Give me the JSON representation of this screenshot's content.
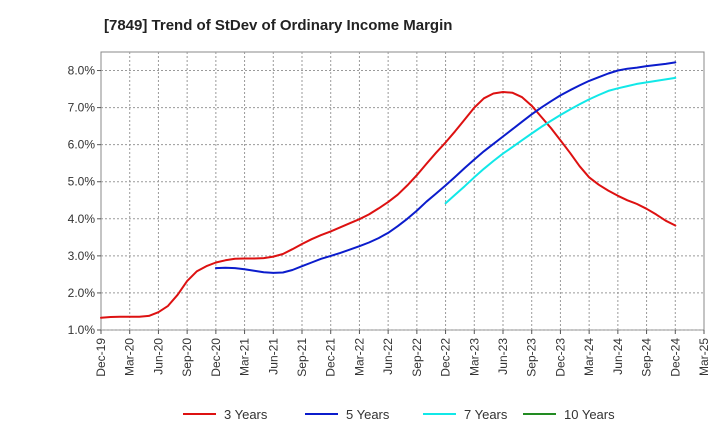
{
  "chart_data": {
    "type": "line",
    "title": "[7849]  Trend of StDev of Ordinary Income Margin",
    "xlabel": "",
    "ylabel": "",
    "x_ticks": [
      "Dec-19",
      "Mar-20",
      "Jun-20",
      "Sep-20",
      "Dec-20",
      "Mar-21",
      "Jun-21",
      "Sep-21",
      "Dec-21",
      "Mar-22",
      "Jun-22",
      "Sep-22",
      "Dec-22",
      "Mar-23",
      "Jun-23",
      "Sep-23",
      "Dec-23",
      "Mar-24",
      "Jun-24",
      "Sep-24",
      "Dec-24",
      "Mar-25"
    ],
    "y_ticks": [
      "1.0%",
      "2.0%",
      "3.0%",
      "4.0%",
      "5.0%",
      "6.0%",
      "7.0%",
      "8.0%"
    ],
    "ylim": [
      1.0,
      8.5
    ],
    "grid": true,
    "legend_position": "bottom",
    "series": [
      {
        "name": "3 Years",
        "color": "#dd1111",
        "x": [
          "Dec-19",
          "Jan-20",
          "Feb-20",
          "Mar-20",
          "Apr-20",
          "May-20",
          "Jun-20",
          "Jul-20",
          "Aug-20",
          "Sep-20",
          "Oct-20",
          "Nov-20",
          "Dec-20",
          "Jan-21",
          "Feb-21",
          "Mar-21",
          "Apr-21",
          "May-21",
          "Jun-21",
          "Jul-21",
          "Aug-21",
          "Sep-21",
          "Oct-21",
          "Nov-21",
          "Dec-21",
          "Jan-22",
          "Feb-22",
          "Mar-22",
          "Apr-22",
          "May-22",
          "Jun-22",
          "Jul-22",
          "Aug-22",
          "Sep-22",
          "Oct-22",
          "Nov-22",
          "Dec-22",
          "Jan-23",
          "Feb-23",
          "Mar-23",
          "Apr-23",
          "May-23",
          "Jun-23",
          "Jul-23",
          "Aug-23",
          "Sep-23",
          "Oct-23",
          "Nov-23",
          "Dec-23",
          "Jan-24",
          "Feb-24",
          "Mar-24",
          "Apr-24",
          "May-24",
          "Jun-24",
          "Jul-24",
          "Aug-24",
          "Sep-24",
          "Oct-24",
          "Nov-24",
          "Dec-24"
        ],
        "values": [
          1.33,
          1.35,
          1.36,
          1.36,
          1.36,
          1.38,
          1.48,
          1.65,
          1.95,
          2.32,
          2.58,
          2.72,
          2.82,
          2.88,
          2.92,
          2.93,
          2.93,
          2.94,
          2.98,
          3.05,
          3.18,
          3.32,
          3.45,
          3.56,
          3.66,
          3.77,
          3.88,
          3.99,
          4.12,
          4.28,
          4.45,
          4.65,
          4.9,
          5.18,
          5.48,
          5.78,
          6.06,
          6.36,
          6.68,
          7.0,
          7.25,
          7.38,
          7.42,
          7.4,
          7.28,
          7.05,
          6.75,
          6.45,
          6.12,
          5.78,
          5.42,
          5.12,
          4.92,
          4.76,
          4.62,
          4.5,
          4.4,
          4.27,
          4.12,
          3.95,
          3.82
        ]
      },
      {
        "name": "5 Years",
        "color": "#0b1ccc",
        "x": [
          "Dec-20",
          "Jan-21",
          "Feb-21",
          "Mar-21",
          "Apr-21",
          "May-21",
          "Jun-21",
          "Jul-21",
          "Aug-21",
          "Sep-21",
          "Oct-21",
          "Nov-21",
          "Dec-21",
          "Jan-22",
          "Feb-22",
          "Mar-22",
          "Apr-22",
          "May-22",
          "Jun-22",
          "Jul-22",
          "Aug-22",
          "Sep-22",
          "Oct-22",
          "Nov-22",
          "Dec-22",
          "Jan-23",
          "Feb-23",
          "Mar-23",
          "Apr-23",
          "May-23",
          "Jun-23",
          "Jul-23",
          "Aug-23",
          "Sep-23",
          "Oct-23",
          "Nov-23",
          "Dec-23",
          "Jan-24",
          "Feb-24",
          "Mar-24",
          "Apr-24",
          "May-24",
          "Jun-24",
          "Jul-24",
          "Aug-24",
          "Sep-24",
          "Oct-24",
          "Nov-24",
          "Dec-24"
        ],
        "values": [
          2.67,
          2.68,
          2.67,
          2.64,
          2.6,
          2.56,
          2.54,
          2.55,
          2.62,
          2.72,
          2.82,
          2.92,
          3.0,
          3.08,
          3.17,
          3.26,
          3.36,
          3.48,
          3.62,
          3.8,
          4.0,
          4.22,
          4.46,
          4.68,
          4.9,
          5.13,
          5.37,
          5.6,
          5.82,
          6.02,
          6.22,
          6.42,
          6.62,
          6.82,
          7.0,
          7.17,
          7.33,
          7.47,
          7.6,
          7.72,
          7.82,
          7.92,
          8.0,
          8.05,
          8.08,
          8.12,
          8.15,
          8.18,
          8.22
        ]
      },
      {
        "name": "7 Years",
        "color": "#11e8e8",
        "x": [
          "Dec-22",
          "Jan-23",
          "Feb-23",
          "Mar-23",
          "Apr-23",
          "May-23",
          "Jun-23",
          "Jul-23",
          "Aug-23",
          "Sep-23",
          "Oct-23",
          "Nov-23",
          "Dec-23",
          "Jan-24",
          "Feb-24",
          "Mar-24",
          "Apr-24",
          "May-24",
          "Jun-24",
          "Jul-24",
          "Aug-24",
          "Sep-24",
          "Oct-24",
          "Nov-24",
          "Dec-24"
        ],
        "values": [
          4.42,
          4.65,
          4.88,
          5.12,
          5.35,
          5.56,
          5.76,
          5.94,
          6.12,
          6.3,
          6.48,
          6.64,
          6.8,
          6.95,
          7.09,
          7.22,
          7.34,
          7.45,
          7.52,
          7.58,
          7.64,
          7.68,
          7.72,
          7.76,
          7.8
        ]
      },
      {
        "name": "10 Years",
        "color": "#228b22",
        "x": [],
        "values": []
      }
    ]
  }
}
